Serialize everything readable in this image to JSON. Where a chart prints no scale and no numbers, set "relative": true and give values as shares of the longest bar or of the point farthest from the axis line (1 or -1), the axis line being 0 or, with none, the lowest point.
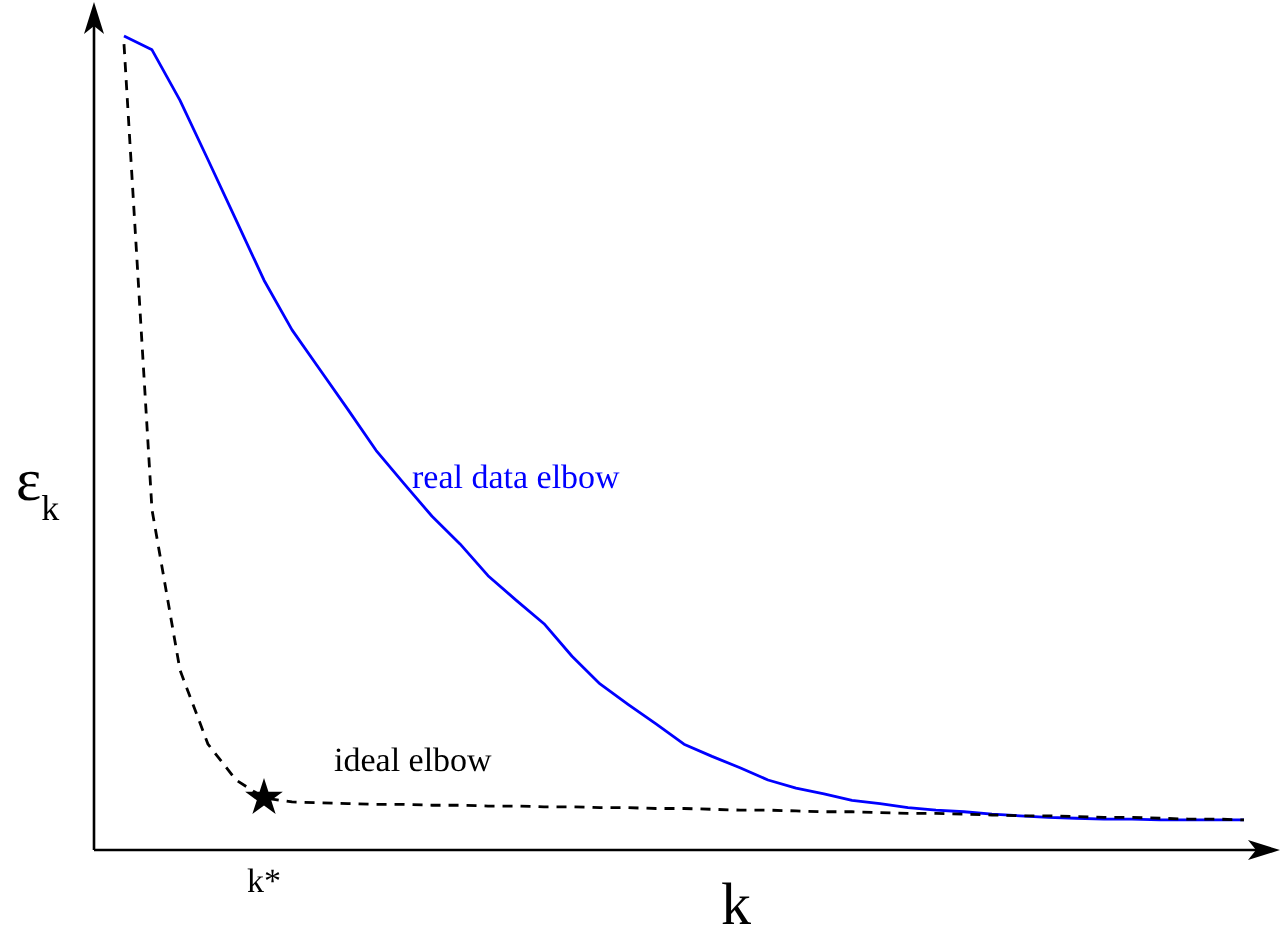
{
  "chart_data": {
    "type": "line",
    "relative": true,
    "xlabel": "k",
    "ylabel": "ε$_{k}$",
    "annotations": [
      "k*"
    ],
    "categories": [
      null,
      null,
      null,
      null,
      null,
      null,
      null,
      null,
      null,
      null,
      null,
      null,
      null,
      null,
      null,
      null,
      null,
      null,
      null,
      null,
      null,
      null,
      null,
      null,
      null,
      null,
      null,
      null,
      null,
      null,
      null,
      null,
      null,
      null,
      null,
      null,
      null,
      null,
      null,
      null,
      null
    ],
    "series": [
      {
        "name": "real data elbow",
        "color": "#0000ff",
        "line_style": "solid",
        "values": [
          1.0,
          0.983,
          0.921,
          0.848,
          0.774,
          0.7,
          0.639,
          0.59,
          0.541,
          0.491,
          0.45,
          0.41,
          0.376,
          0.337,
          0.307,
          0.278,
          0.238,
          0.204,
          0.179,
          0.155,
          0.13,
          0.115,
          0.101,
          0.086,
          0.076,
          0.069,
          0.061,
          0.057,
          0.052,
          0.049,
          0.047,
          0.044,
          0.042,
          0.04,
          0.039,
          0.038,
          0.038,
          0.037,
          0.037,
          0.037,
          0.037
        ]
      },
      {
        "name": "ideal elbow",
        "color": "#000000",
        "line_style": "dashed",
        "values": [
          0.99,
          0.418,
          0.221,
          0.13,
          0.086,
          0.064,
          0.059,
          0.058,
          0.057,
          0.056,
          0.056,
          0.055,
          0.055,
          0.054,
          0.054,
          0.053,
          0.053,
          0.052,
          0.052,
          0.051,
          0.051,
          0.05,
          0.049,
          0.049,
          0.048,
          0.047,
          0.047,
          0.046,
          0.045,
          0.045,
          0.044,
          0.043,
          0.042,
          0.042,
          0.041,
          0.04,
          0.04,
          0.039,
          0.038,
          0.038,
          0.037
        ]
      }
    ]
  }
}
